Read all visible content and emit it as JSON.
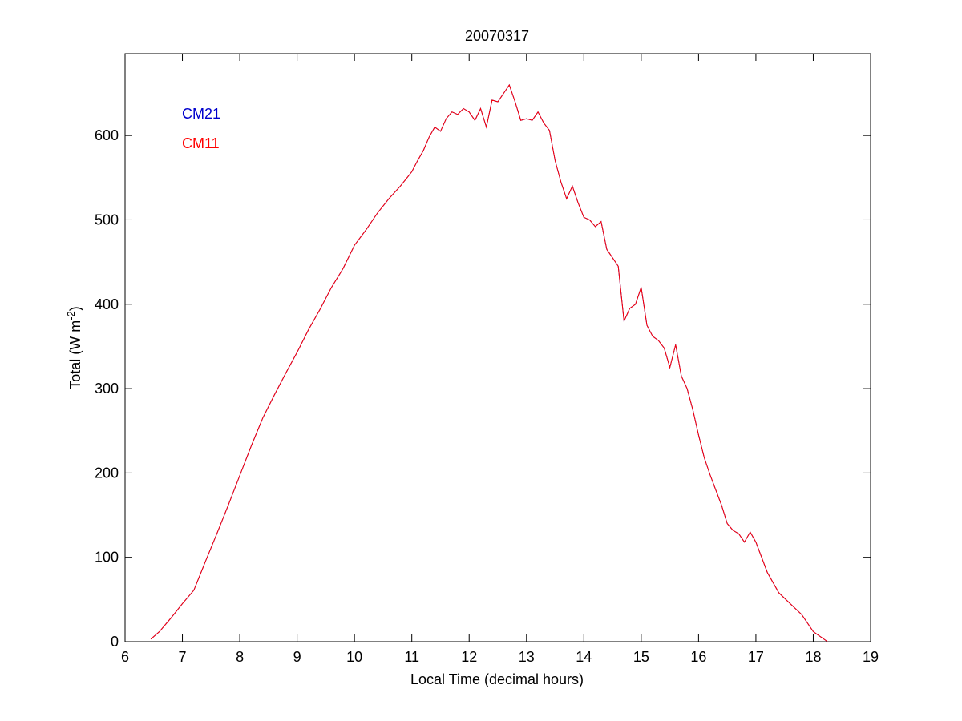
{
  "chart_data": {
    "type": "line",
    "title": "20070317",
    "xlabel": "Local Time (decimal hours)",
    "ylabel_main": "Total (W m",
    "ylabel_sup": "-2",
    "ylabel_close": ")",
    "xlim": [
      6,
      19
    ],
    "ylim": [
      0,
      697
    ],
    "xticks": [
      6,
      7,
      8,
      9,
      10,
      11,
      12,
      13,
      14,
      15,
      16,
      17,
      18,
      19
    ],
    "yticks": [
      0,
      100,
      200,
      300,
      400,
      500,
      600
    ],
    "grid": false,
    "legend_position": "top-left",
    "series": [
      {
        "name": "CM21",
        "color": "#0000cc",
        "x": [
          6.45,
          6.6,
          6.8,
          7.0,
          7.2,
          7.4,
          7.6,
          7.8,
          8.0,
          8.2,
          8.4,
          8.6,
          8.8,
          9.0,
          9.2,
          9.4,
          9.6,
          9.8,
          10.0,
          10.2,
          10.4,
          10.6,
          10.8,
          11.0,
          11.1,
          11.2,
          11.3,
          11.4,
          11.5,
          11.6,
          11.7,
          11.8,
          11.9,
          12.0,
          12.1,
          12.2,
          12.3,
          12.4,
          12.5,
          12.6,
          12.7,
          12.8,
          12.9,
          13.0,
          13.1,
          13.2,
          13.3,
          13.4,
          13.5,
          13.6,
          13.7,
          13.8,
          13.9,
          14.0,
          14.1,
          14.2,
          14.3,
          14.4,
          14.5,
          14.6,
          14.7,
          14.8,
          14.9,
          15.0,
          15.1,
          15.2,
          15.3,
          15.4,
          15.5,
          15.6,
          15.7,
          15.8,
          15.9,
          16.0,
          16.1,
          16.2,
          16.3,
          16.4,
          16.5,
          16.6,
          16.7,
          16.8,
          16.9,
          17.0,
          17.2,
          17.4,
          17.6,
          17.8,
          18.0,
          18.25
        ],
        "y": [
          3,
          12,
          28,
          45,
          61,
          95,
          128,
          162,
          197,
          232,
          265,
          292,
          318,
          343,
          370,
          394,
          420,
          442,
          470,
          488,
          508,
          525,
          540,
          557,
          570,
          582,
          598,
          610,
          605,
          620,
          628,
          625,
          632,
          628,
          618,
          632,
          610,
          642,
          640,
          650,
          660,
          640,
          618,
          620,
          618,
          628,
          615,
          606,
          570,
          545,
          525,
          540,
          520,
          503,
          500,
          492,
          498,
          465,
          455,
          445,
          380,
          395,
          400,
          420,
          375,
          362,
          357,
          348,
          325,
          352,
          315,
          300,
          275,
          245,
          218,
          198,
          180,
          162,
          140,
          132,
          128,
          118,
          130,
          118,
          82,
          58,
          45,
          32,
          12,
          0
        ]
      },
      {
        "name": "CM11",
        "color": "#ff0000",
        "x": [
          6.45,
          6.6,
          6.8,
          7.0,
          7.2,
          7.4,
          7.6,
          7.8,
          8.0,
          8.2,
          8.4,
          8.6,
          8.8,
          9.0,
          9.2,
          9.4,
          9.6,
          9.8,
          10.0,
          10.2,
          10.4,
          10.6,
          10.8,
          11.0,
          11.1,
          11.2,
          11.3,
          11.4,
          11.5,
          11.6,
          11.7,
          11.8,
          11.9,
          12.0,
          12.1,
          12.2,
          12.3,
          12.4,
          12.5,
          12.6,
          12.7,
          12.8,
          12.9,
          13.0,
          13.1,
          13.2,
          13.3,
          13.4,
          13.5,
          13.6,
          13.7,
          13.8,
          13.9,
          14.0,
          14.1,
          14.2,
          14.3,
          14.4,
          14.5,
          14.6,
          14.7,
          14.8,
          14.9,
          15.0,
          15.1,
          15.2,
          15.3,
          15.4,
          15.5,
          15.6,
          15.7,
          15.8,
          15.9,
          16.0,
          16.1,
          16.2,
          16.3,
          16.4,
          16.5,
          16.6,
          16.7,
          16.8,
          16.9,
          17.0,
          17.2,
          17.4,
          17.6,
          17.8,
          18.0,
          18.25
        ],
        "y": [
          3,
          12,
          28,
          45,
          61,
          95,
          128,
          162,
          197,
          232,
          265,
          292,
          318,
          343,
          370,
          394,
          420,
          442,
          470,
          488,
          508,
          525,
          540,
          557,
          570,
          582,
          598,
          610,
          605,
          620,
          628,
          625,
          632,
          628,
          618,
          632,
          610,
          642,
          640,
          650,
          660,
          640,
          618,
          620,
          618,
          628,
          615,
          606,
          570,
          545,
          525,
          540,
          520,
          503,
          500,
          492,
          498,
          465,
          455,
          445,
          380,
          395,
          400,
          420,
          375,
          362,
          357,
          348,
          325,
          352,
          315,
          300,
          275,
          245,
          218,
          198,
          180,
          162,
          140,
          132,
          128,
          118,
          130,
          118,
          82,
          58,
          45,
          32,
          12,
          0
        ]
      }
    ]
  }
}
